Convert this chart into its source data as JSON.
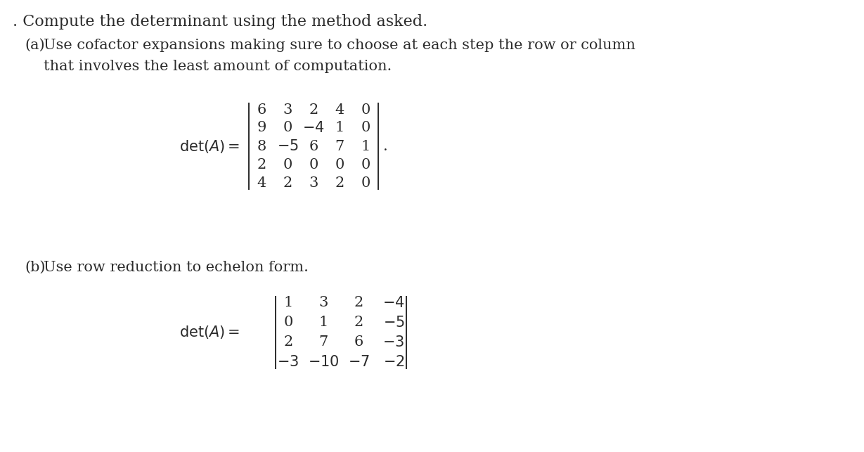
{
  "background_color": "#ffffff",
  "title_text": ". Compute the determinant using the method asked.",
  "part_a_label": "(a)",
  "part_a_line1": "Use cofactor expansions making sure to choose at each step the row or column",
  "part_a_line2": "that involves the least amount of computation.",
  "det_a_label": "$\\det(A) =$",
  "matrix_a": [
    [
      "6",
      "3",
      "2",
      "4",
      "0"
    ],
    [
      "9",
      "0",
      "$-4$",
      "1",
      "0"
    ],
    [
      "8",
      "$-5$",
      "6",
      "7",
      "1"
    ],
    [
      "2",
      "0",
      "0",
      "0",
      "0"
    ],
    [
      "4",
      "2",
      "3",
      "2",
      "0"
    ]
  ],
  "period_after_a": ".",
  "part_b_label": "(b)",
  "part_b_text": "Use row reduction to echelon form.",
  "det_b_label": "$\\det(A) =$",
  "matrix_b": [
    [
      "1",
      "3",
      "2",
      "$-4$"
    ],
    [
      "0",
      "1",
      "2",
      "$-5$"
    ],
    [
      "2",
      "7",
      "6",
      "$-3$"
    ],
    [
      "$-3$",
      "$-10$",
      "$-7$",
      "$-2$"
    ]
  ],
  "font_size_title": 16,
  "font_size_body": 15,
  "font_size_matrix": 15,
  "text_color": "#2b2b2b",
  "fig_width": 12.29,
  "fig_height": 6.43,
  "dpi": 100
}
